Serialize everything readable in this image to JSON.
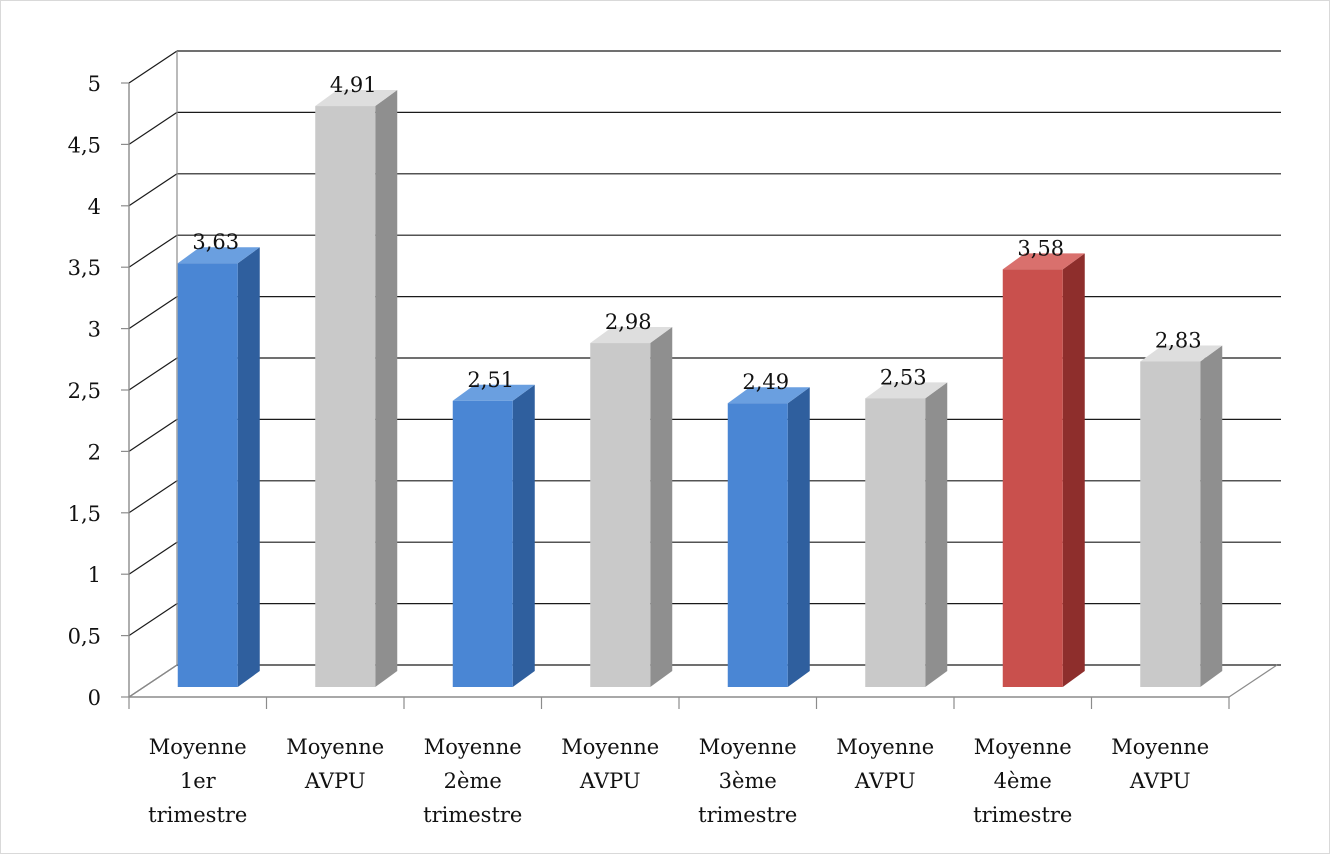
{
  "chart_data": {
    "type": "bar",
    "title": "",
    "xlabel": "",
    "ylabel": "",
    "ylim": [
      0,
      5
    ],
    "yticks": [
      "0",
      "0,5",
      "1",
      "1,5",
      "2",
      "2,5",
      "3",
      "3,5",
      "4",
      "4,5",
      "5"
    ],
    "grid": true,
    "legend": "none",
    "style": "3d",
    "categories": [
      [
        "Moyenne",
        "1er",
        "trimestre"
      ],
      [
        "Moyenne",
        "AVPU"
      ],
      [
        "Moyenne",
        "2ème",
        "trimestre"
      ],
      [
        "Moyenne",
        "AVPU"
      ],
      [
        "Moyenne",
        "3ème",
        "trimestre"
      ],
      [
        "Moyenne",
        "AVPU"
      ],
      [
        "Moyenne",
        "4ème",
        "trimestre"
      ],
      [
        "Moyenne",
        "AVPU"
      ]
    ],
    "values": [
      3.63,
      4.91,
      2.51,
      2.98,
      2.49,
      2.53,
      3.58,
      2.83
    ],
    "value_labels": [
      "3,63",
      "4,91",
      "2,51",
      "2,98",
      "2,49",
      "2,53",
      "3,58",
      "2,83"
    ],
    "bar_colors": [
      "blue",
      "gray",
      "blue",
      "gray",
      "blue",
      "gray",
      "red",
      "gray"
    ],
    "colors": {
      "blue": {
        "front": "#4a86d4",
        "side": "#2f5f9e",
        "top": "#6a9fe0"
      },
      "gray": {
        "front": "#c9c9c9",
        "side": "#8f8f8f",
        "top": "#dedede"
      },
      "red": {
        "front": "#c9504d",
        "side": "#8e2e2c",
        "top": "#d9706d"
      },
      "grid": "#1a1a1a",
      "axis": "#8c8c8c"
    }
  }
}
